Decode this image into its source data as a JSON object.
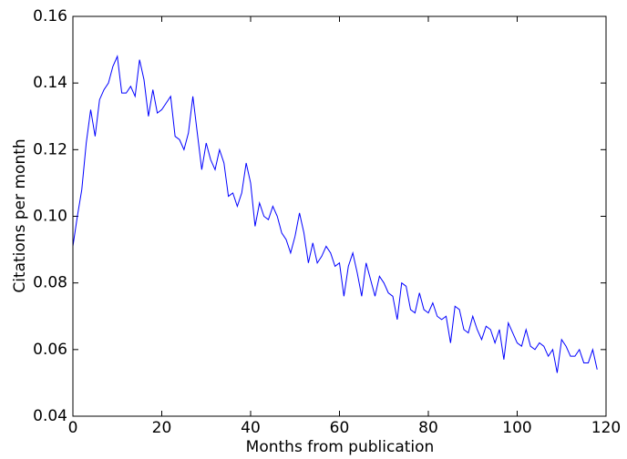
{
  "chart_data": {
    "type": "line",
    "xlabel": "Months from publication",
    "ylabel": "Citations per month",
    "color": "#0000ff",
    "grid": false,
    "x": [
      0,
      1,
      2,
      3,
      4,
      5,
      6,
      7,
      8,
      9,
      10,
      11,
      12,
      13,
      14,
      15,
      16,
      17,
      18,
      19,
      20,
      21,
      22,
      23,
      24,
      25,
      26,
      27,
      28,
      29,
      30,
      31,
      32,
      33,
      34,
      35,
      36,
      37,
      38,
      39,
      40,
      41,
      42,
      43,
      44,
      45,
      46,
      47,
      48,
      49,
      50,
      51,
      52,
      53,
      54,
      55,
      56,
      57,
      58,
      59,
      60,
      61,
      62,
      63,
      64,
      65,
      66,
      67,
      68,
      69,
      70,
      71,
      72,
      73,
      74,
      75,
      76,
      77,
      78,
      79,
      80,
      81,
      82,
      83,
      84,
      85,
      86,
      87,
      88,
      89,
      90,
      91,
      92,
      93,
      94,
      95,
      96,
      97,
      98,
      99,
      100,
      101,
      102,
      103,
      104,
      105,
      106,
      107,
      108,
      109,
      110,
      111,
      112,
      113,
      114,
      115,
      116,
      117,
      118
    ],
    "values": [
      0.091,
      0.1,
      0.108,
      0.122,
      0.132,
      0.124,
      0.135,
      0.138,
      0.14,
      0.145,
      0.148,
      0.137,
      0.137,
      0.139,
      0.136,
      0.147,
      0.141,
      0.13,
      0.138,
      0.131,
      0.132,
      0.134,
      0.136,
      0.124,
      0.123,
      0.12,
      0.125,
      0.136,
      0.125,
      0.114,
      0.122,
      0.117,
      0.114,
      0.12,
      0.116,
      0.106,
      0.107,
      0.103,
      0.107,
      0.116,
      0.11,
      0.097,
      0.104,
      0.1,
      0.099,
      0.103,
      0.1,
      0.095,
      0.093,
      0.089,
      0.094,
      0.101,
      0.095,
      0.086,
      0.092,
      0.086,
      0.088,
      0.091,
      0.089,
      0.085,
      0.086,
      0.076,
      0.085,
      0.089,
      0.083,
      0.076,
      0.086,
      0.081,
      0.076,
      0.082,
      0.08,
      0.077,
      0.076,
      0.069,
      0.08,
      0.079,
      0.072,
      0.071,
      0.077,
      0.072,
      0.071,
      0.074,
      0.07,
      0.069,
      0.07,
      0.062,
      0.073,
      0.072,
      0.066,
      0.065,
      0.07,
      0.066,
      0.063,
      0.067,
      0.066,
      0.062,
      0.066,
      0.057,
      0.068,
      0.065,
      0.062,
      0.061,
      0.066,
      0.061,
      0.06,
      0.062,
      0.061,
      0.058,
      0.06,
      0.053,
      0.063,
      0.061,
      0.058,
      0.058,
      0.06,
      0.056,
      0.056,
      0.06,
      0.054
    ],
    "xlim": [
      0,
      120
    ],
    "xticks": [
      0,
      20,
      40,
      60,
      80,
      100,
      120
    ],
    "ylim": [
      0.04,
      0.16
    ],
    "yticks": [
      0.04,
      0.06,
      0.08,
      {
        "value": 0.1,
        "label": "0.10"
      },
      0.12,
      0.14,
      0.16
    ]
  }
}
